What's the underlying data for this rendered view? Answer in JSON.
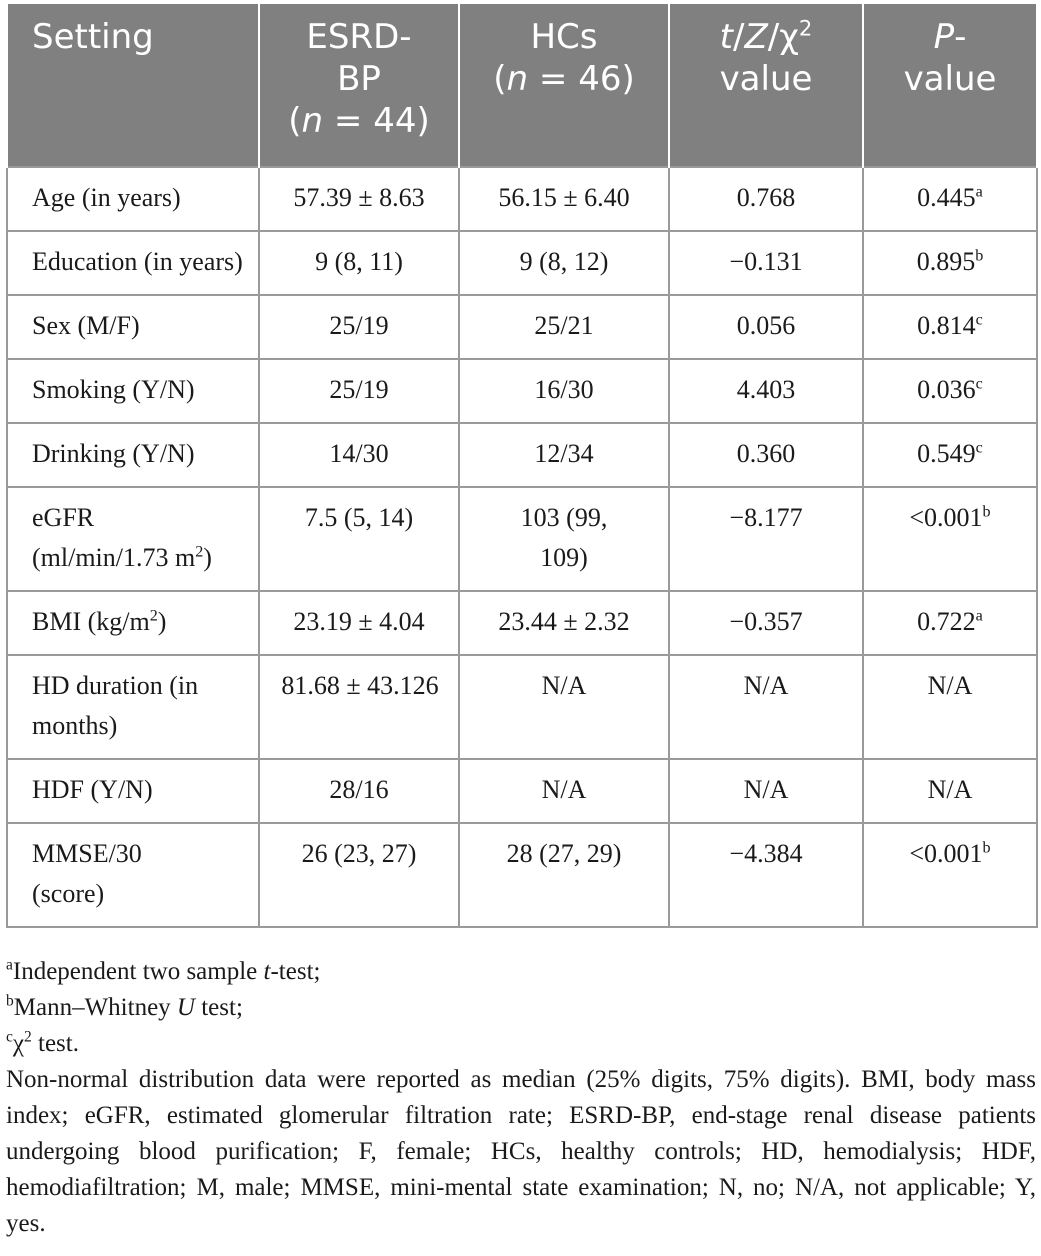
{
  "header": {
    "setting": "Setting",
    "esrd_line1": "ESRD-",
    "esrd_line2": "BP",
    "esrd_n_prefix": "(",
    "esrd_n_italic": "n",
    "esrd_n_suffix": " = 44)",
    "hcs_line1": "HCs",
    "hcs_n_prefix": "(",
    "hcs_n_italic": "n",
    "hcs_n_suffix": " = 46)",
    "stat_t": "t",
    "stat_sep1": "/",
    "stat_z": "Z",
    "stat_sep2": "/χ",
    "stat_sup": "2",
    "stat_line2": "value",
    "p_italic": "P",
    "p_dash": "-",
    "p_line2": "value"
  },
  "rows": [
    {
      "label": "Age (in years)",
      "esrd": "57.39 ± 8.63",
      "hcs": "56.15 ± 6.40",
      "stat": "0.768",
      "p": "0.445",
      "p_sup": "a"
    },
    {
      "label": "Education (in years)",
      "esrd": "9 (8, 11)",
      "hcs": "9 (8, 12)",
      "stat": "−0.131",
      "p": "0.895",
      "p_sup": "b"
    },
    {
      "label": "Sex (M/F)",
      "esrd": "25/19",
      "hcs": "25/21",
      "stat": "0.056",
      "p": "0.814",
      "p_sup": "c"
    },
    {
      "label": "Smoking (Y/N)",
      "esrd": "25/19",
      "hcs": "16/30",
      "stat": "4.403",
      "p": "0.036",
      "p_sup": "c"
    },
    {
      "label": "Drinking (Y/N)",
      "esrd": "14/30",
      "hcs": "12/34",
      "stat": "0.360",
      "p": "0.549",
      "p_sup": "c"
    },
    {
      "label_line1": "eGFR",
      "label_line2": "(ml/min/1.73 m",
      "label_sup": "2",
      "label_end": ")",
      "esrd": "7.5 (5, 14)",
      "hcs_line1": "103 (99,",
      "hcs_line2": "109)",
      "stat": "−8.177",
      "p": "<0.001",
      "p_sup": "b"
    },
    {
      "label_pre": "BMI (kg/m",
      "label_sup": "2",
      "label_end": ")",
      "esrd": "23.19 ± 4.04",
      "hcs": "23.44 ± 2.32",
      "stat": "−0.357",
      "p": "0.722",
      "p_sup": "a"
    },
    {
      "label": "HD duration (in months)",
      "esrd": "81.68 ± 43.126",
      "hcs": "N/A",
      "stat": "N/A",
      "p": "N/A"
    },
    {
      "label": "HDF (Y/N)",
      "esrd": "28/16",
      "hcs": "N/A",
      "stat": "N/A",
      "p": "N/A"
    },
    {
      "label_line1": "MMSE/30",
      "label_line2": "(score)",
      "esrd": "26 (23, 27)",
      "hcs": "28 (27, 29)",
      "stat": "−4.384",
      "p": "<0.001",
      "p_sup": "b"
    }
  ],
  "footnotes": {
    "a_mark": "a",
    "a_text_pre": "Independent two sample ",
    "a_text_italic": "t",
    "a_text_post": "-test;",
    "b_mark": "b",
    "b_text_pre": "Mann–Whitney ",
    "b_text_italic": "U",
    "b_text_post": " test;",
    "c_mark": "c",
    "c_text_pre": "χ",
    "c_text_sup": "2",
    "c_text_post": " test.",
    "note": "Non-normal distribution data were reported as median (25% digits, 75% digits). BMI, body mass index; eGFR, estimated glomerular filtration rate; ESRD-BP, end-stage renal disease patients undergoing blood purification; F, female; HCs, healthy controls; HD, hemodialysis; HDF, hemodiafiltration; M, male; MMSE, mini-mental state examination; N, no; N/A, not applicable; Y, yes."
  }
}
